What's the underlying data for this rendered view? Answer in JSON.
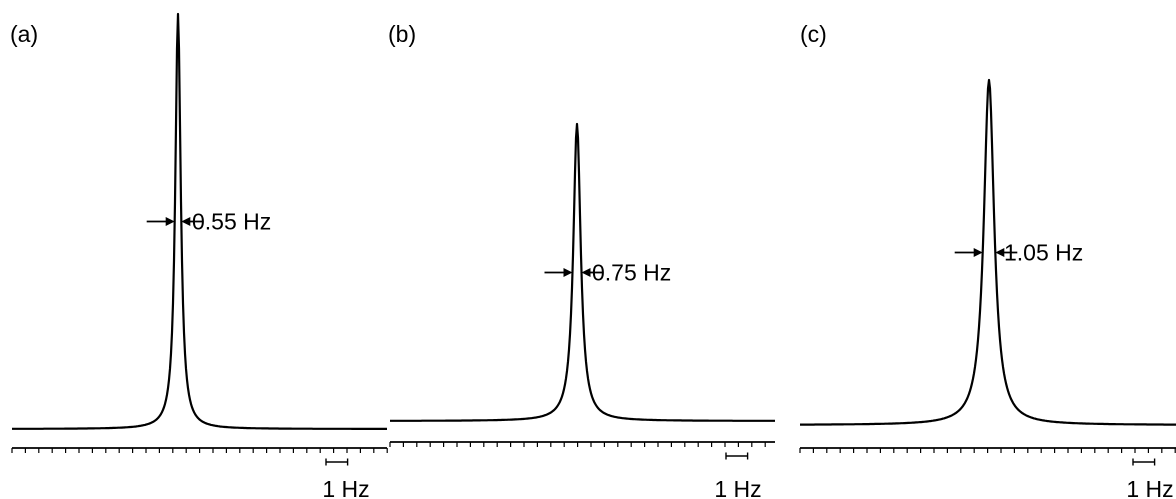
{
  "chart_data": [
    {
      "type": "line",
      "panel_label": "(a)",
      "linewidth_hz": 0.55,
      "linewidth_label": "0.55 Hz",
      "scale_label": "1 Hz",
      "peak_height": 1.0,
      "x_unit": "Hz",
      "xlim": [
        -8,
        8
      ],
      "baseline_offset": 0.05,
      "grid": false
    },
    {
      "type": "line",
      "panel_label": "(b)",
      "linewidth_hz": 0.75,
      "linewidth_label": "0.75 Hz",
      "scale_label": "1 Hz",
      "peak_height": 0.74,
      "x_unit": "Hz",
      "xlim": [
        -8,
        8
      ],
      "baseline_offset": 0.05,
      "grid": false
    },
    {
      "type": "line",
      "panel_label": "(c)",
      "linewidth_hz": 1.05,
      "linewidth_label": "1.05 Hz",
      "scale_label": "1 Hz",
      "peak_height": 0.84,
      "x_unit": "Hz",
      "xlim": [
        -8,
        8
      ],
      "baseline_offset": 0.05,
      "grid": false
    }
  ]
}
